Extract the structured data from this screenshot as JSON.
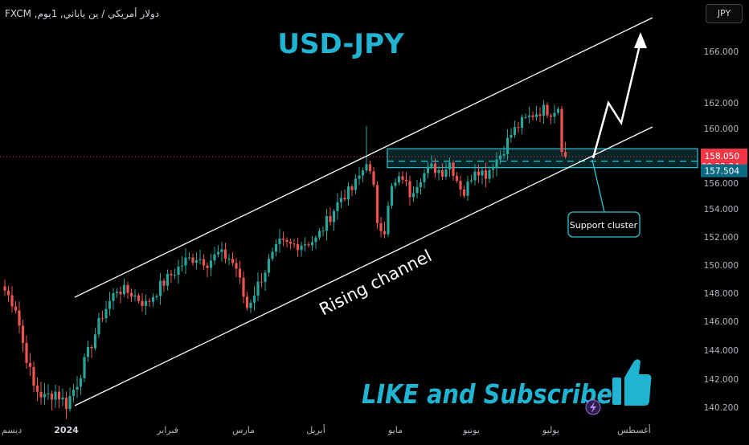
{
  "header": {
    "symbol_description": "دولار أمريكي / ين ياباني, 1يوم, FXCM",
    "currency_button": "JPY"
  },
  "colors": {
    "bull": "#26a69a",
    "bear": "#ef5350",
    "title": "#1fb4d2",
    "accent_box": "#26c6da",
    "price_label": "#f23645",
    "support_label": "#089981"
  },
  "chart_data": {
    "type": "candlestick",
    "title": "USD-JPY",
    "ylabel": "",
    "ylim": [
      139.5,
      169.0
    ],
    "y_ticks": [
      140.2,
      142.0,
      144.0,
      146.0,
      148.0,
      150.0,
      152.0,
      154.0,
      156.0,
      160.0,
      162.0,
      166.0
    ],
    "x_tick_labels": [
      "ديسم",
      "2024",
      "فبراير",
      "مارس",
      "أبريل",
      "مايو",
      "يونيو",
      "يوليو",
      "أغسطس"
    ],
    "x_tick_positions": [
      0,
      17,
      45,
      66,
      86,
      108,
      129,
      151,
      174
    ],
    "total_bars": 183,
    "last_price": "158.050",
    "countdown": "09:22:24",
    "support_price": "157.504",
    "support_zone": [
      157.2,
      158.6
    ],
    "anchors": [
      [
        0,
        148.2
      ],
      [
        3,
        147.0
      ],
      [
        5,
        144.5
      ],
      [
        8,
        141.5
      ],
      [
        11,
        140.8
      ],
      [
        14,
        141.2
      ],
      [
        17,
        140.4
      ],
      [
        20,
        141.8
      ],
      [
        23,
        143.8
      ],
      [
        27,
        146.5
      ],
      [
        31,
        148.3
      ],
      [
        35,
        148.0
      ],
      [
        39,
        147.2
      ],
      [
        43,
        148.5
      ],
      [
        46,
        149.3
      ],
      [
        50,
        150.3
      ],
      [
        53,
        150.6
      ],
      [
        56,
        150.2
      ],
      [
        59,
        150.8
      ],
      [
        62,
        150.5
      ],
      [
        64,
        149.8
      ],
      [
        66,
        147.8
      ],
      [
        67,
        147.0
      ],
      [
        70,
        148.6
      ],
      [
        73,
        150.2
      ],
      [
        76,
        151.5
      ],
      [
        79,
        151.4
      ],
      [
        83,
        151.6
      ],
      [
        86,
        151.8
      ],
      [
        90,
        153.5
      ],
      [
        93,
        154.9
      ],
      [
        96,
        155.5
      ],
      [
        99,
        157.0
      ],
      [
        100,
        157.8
      ],
      [
        102,
        155.5
      ],
      [
        103,
        153.2
      ],
      [
        105,
        152.5
      ],
      [
        107,
        155.6
      ],
      [
        110,
        156.5
      ],
      [
        112,
        155.2
      ],
      [
        115,
        156.5
      ],
      [
        118,
        157.2
      ],
      [
        121,
        156.9
      ],
      [
        123,
        157.6
      ],
      [
        125,
        156.3
      ],
      [
        127,
        155.2
      ],
      [
        130,
        157.2
      ],
      [
        133,
        156.7
      ],
      [
        135,
        157.5
      ],
      [
        137,
        158.2
      ],
      [
        140,
        159.6
      ],
      [
        143,
        160.5
      ],
      [
        146,
        161.1
      ],
      [
        149,
        161.5
      ],
      [
        151,
        161.3
      ],
      [
        153,
        161.7
      ],
      [
        154,
        158.8
      ],
      [
        155,
        158.05
      ]
    ],
    "annotations": {
      "channel_label": "Rising channel",
      "support_label": "Support cluster",
      "cta": "LIKE and Subscribe"
    }
  }
}
